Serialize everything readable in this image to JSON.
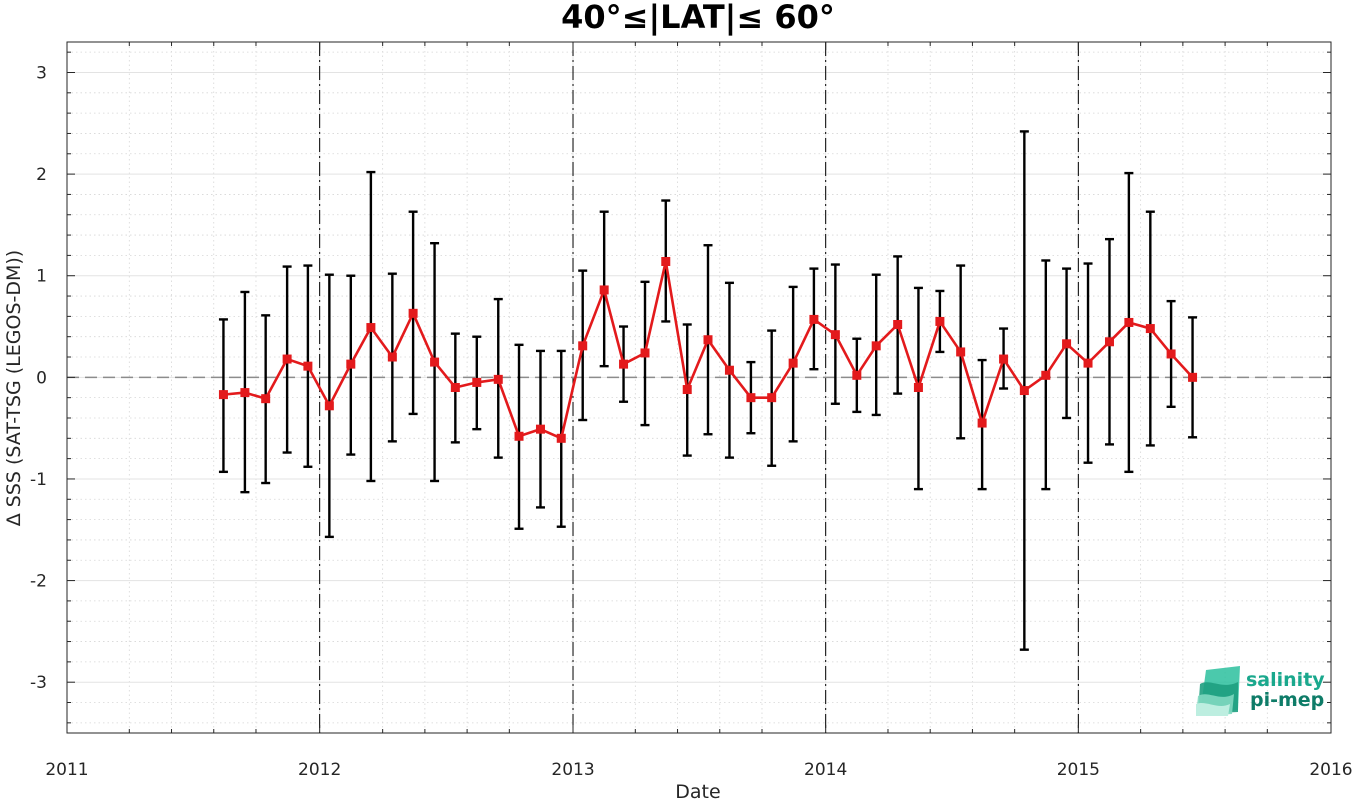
{
  "chart_data": {
    "type": "line",
    "title": "40°≤|LAT|≤ 60°",
    "xlabel": "Date",
    "ylabel": "Δ SSS (SAT-TSG (LEGOS-DM))",
    "xlim": [
      "2011-01-01",
      "2016-01-01"
    ],
    "ylim": [
      -3.5,
      3.3
    ],
    "x_ticks": [
      "2011",
      "2012",
      "2013",
      "2014",
      "2015",
      "2016"
    ],
    "y_ticks": [
      -3,
      -2,
      -1,
      0,
      1,
      2,
      3
    ],
    "grid": true,
    "reference_line_y": 0,
    "year_boundaries": [
      "2012-01-01",
      "2013-01-01",
      "2014-01-01",
      "2015-01-01"
    ],
    "series": [
      {
        "color": "#e31a1c",
        "error_bar_color": "#000000",
        "marker": "square",
        "x": [
          "2011-08-15",
          "2011-09-15",
          "2011-10-15",
          "2011-11-15",
          "2011-12-15",
          "2012-01-15",
          "2012-02-15",
          "2012-03-15",
          "2012-04-15",
          "2012-05-15",
          "2012-06-15",
          "2012-07-15",
          "2012-08-15",
          "2012-09-15",
          "2012-10-15",
          "2012-11-15",
          "2012-12-15",
          "2013-01-15",
          "2013-02-15",
          "2013-03-15",
          "2013-04-15",
          "2013-05-15",
          "2013-06-15",
          "2013-07-15",
          "2013-08-15",
          "2013-09-15",
          "2013-10-15",
          "2013-11-15",
          "2013-12-15",
          "2014-01-15",
          "2014-02-15",
          "2014-03-15",
          "2014-04-15",
          "2014-05-15",
          "2014-06-15",
          "2014-07-15",
          "2014-08-15",
          "2014-09-15",
          "2014-10-15",
          "2014-11-15",
          "2014-12-15",
          "2015-01-15",
          "2015-02-15",
          "2015-03-15",
          "2015-04-15",
          "2015-05-15",
          "2015-06-15"
        ],
        "values": [
          -0.17,
          -0.15,
          -0.21,
          0.18,
          0.11,
          -0.28,
          0.13,
          0.49,
          0.2,
          0.63,
          0.15,
          -0.1,
          -0.05,
          -0.02,
          -0.58,
          -0.51,
          -0.6,
          0.31,
          0.86,
          0.13,
          0.24,
          1.14,
          -0.12,
          0.37,
          0.07,
          -0.2,
          -0.2,
          0.14,
          0.57,
          0.42,
          0.02,
          0.31,
          0.52,
          -0.1,
          0.55,
          0.25,
          -0.45,
          0.18,
          -0.13,
          0.02,
          0.33,
          0.14,
          0.35,
          0.54,
          0.48,
          0.23,
          0.0
        ],
        "upper": [
          0.57,
          0.84,
          0.61,
          1.09,
          1.1,
          1.01,
          1.0,
          2.02,
          1.02,
          1.63,
          1.32,
          0.43,
          0.4,
          0.77,
          0.32,
          0.26,
          0.26,
          1.05,
          1.63,
          0.5,
          0.94,
          1.74,
          0.52,
          1.3,
          0.93,
          0.15,
          0.46,
          0.89,
          1.07,
          1.11,
          0.38,
          1.01,
          1.19,
          0.88,
          0.85,
          1.1,
          0.17,
          0.48,
          2.42,
          1.15,
          1.07,
          1.12,
          1.36,
          2.01,
          1.63,
          0.75,
          0.59
        ],
        "lower": [
          -0.93,
          -1.13,
          -1.04,
          -0.74,
          -0.88,
          -1.57,
          -0.76,
          -1.02,
          -0.63,
          -0.36,
          -1.02,
          -0.64,
          -0.51,
          -0.79,
          -1.49,
          -1.28,
          -1.47,
          -0.42,
          0.11,
          -0.24,
          -0.47,
          0.55,
          -0.77,
          -0.56,
          -0.79,
          -0.55,
          -0.87,
          -0.63,
          0.08,
          -0.26,
          -0.34,
          -0.37,
          -0.16,
          -1.1,
          0.25,
          -0.6,
          -1.1,
          -0.11,
          -2.68,
          -1.1,
          -0.4,
          -0.84,
          -0.66,
          -0.93,
          -0.67,
          -0.29,
          -0.59
        ]
      }
    ]
  },
  "logo": {
    "line1": "salinity",
    "line2": "pi-mep",
    "color": "#1aa88d"
  }
}
